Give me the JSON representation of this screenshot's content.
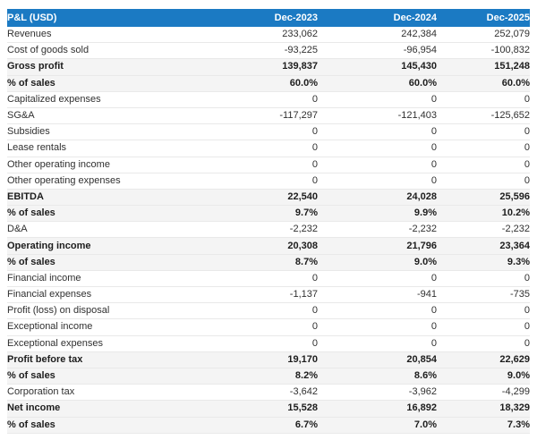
{
  "colors": {
    "header_bg": "#1b7ac3",
    "band_bg": "#f4f4f4",
    "row_border": "#e9e9e9",
    "header_text": "#ffffff"
  },
  "chart_data": {
    "type": "table",
    "title": "P&L (USD)",
    "columns": [
      "Dec-2023",
      "Dec-2024",
      "Dec-2025"
    ],
    "rows": [
      {
        "label": "Revenues",
        "values": [
          "233,062",
          "242,384",
          "252,079"
        ],
        "emphasis": false
      },
      {
        "label": "Cost of goods sold",
        "values": [
          "-93,225",
          "-96,954",
          "-100,832"
        ],
        "emphasis": false
      },
      {
        "label": "Gross profit",
        "values": [
          "139,837",
          "145,430",
          "151,248"
        ],
        "emphasis": true
      },
      {
        "label": "% of sales",
        "values": [
          "60.0%",
          "60.0%",
          "60.0%"
        ],
        "emphasis": true
      },
      {
        "label": "Capitalized expenses",
        "values": [
          "0",
          "0",
          "0"
        ],
        "emphasis": false
      },
      {
        "label": "SG&A",
        "values": [
          "-117,297",
          "-121,403",
          "-125,652"
        ],
        "emphasis": false
      },
      {
        "label": "Subsidies",
        "values": [
          "0",
          "0",
          "0"
        ],
        "emphasis": false
      },
      {
        "label": "Lease rentals",
        "values": [
          "0",
          "0",
          "0"
        ],
        "emphasis": false
      },
      {
        "label": "Other operating income",
        "values": [
          "0",
          "0",
          "0"
        ],
        "emphasis": false
      },
      {
        "label": "Other operating expenses",
        "values": [
          "0",
          "0",
          "0"
        ],
        "emphasis": false
      },
      {
        "label": "EBITDA",
        "values": [
          "22,540",
          "24,028",
          "25,596"
        ],
        "emphasis": true
      },
      {
        "label": "% of sales",
        "values": [
          "9.7%",
          "9.9%",
          "10.2%"
        ],
        "emphasis": true
      },
      {
        "label": "D&A",
        "values": [
          "-2,232",
          "-2,232",
          "-2,232"
        ],
        "emphasis": false
      },
      {
        "label": "Operating income",
        "values": [
          "20,308",
          "21,796",
          "23,364"
        ],
        "emphasis": true
      },
      {
        "label": "% of sales",
        "values": [
          "8.7%",
          "9.0%",
          "9.3%"
        ],
        "emphasis": true
      },
      {
        "label": "Financial income",
        "values": [
          "0",
          "0",
          "0"
        ],
        "emphasis": false
      },
      {
        "label": "Financial expenses",
        "values": [
          "-1,137",
          "-941",
          "-735"
        ],
        "emphasis": false
      },
      {
        "label": "Profit (loss) on disposal",
        "values": [
          "0",
          "0",
          "0"
        ],
        "emphasis": false
      },
      {
        "label": "Exceptional income",
        "values": [
          "0",
          "0",
          "0"
        ],
        "emphasis": false
      },
      {
        "label": "Exceptional expenses",
        "values": [
          "0",
          "0",
          "0"
        ],
        "emphasis": false
      },
      {
        "label": "Profit before tax",
        "values": [
          "19,170",
          "20,854",
          "22,629"
        ],
        "emphasis": true
      },
      {
        "label": "% of sales",
        "values": [
          "8.2%",
          "8.6%",
          "9.0%"
        ],
        "emphasis": true
      },
      {
        "label": "Corporation tax",
        "values": [
          "-3,642",
          "-3,962",
          "-4,299"
        ],
        "emphasis": false
      },
      {
        "label": "Net income",
        "values": [
          "15,528",
          "16,892",
          "18,329"
        ],
        "emphasis": true
      },
      {
        "label": "% of sales",
        "values": [
          "6.7%",
          "7.0%",
          "7.3%"
        ],
        "emphasis": true
      }
    ]
  }
}
